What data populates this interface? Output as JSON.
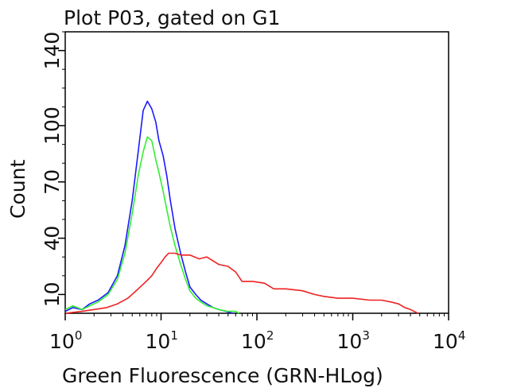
{
  "chart_data": {
    "type": "line",
    "title": "Plot P03, gated on G1",
    "xlabel": "Green Fluorescence (GRN-HLog)",
    "ylabel": "Count",
    "x_scale": "log",
    "xlim": [
      1,
      10000
    ],
    "ylim": [
      0,
      150
    ],
    "x_ticks": [
      {
        "value": 1,
        "base": "10",
        "exp": "0"
      },
      {
        "value": 10,
        "base": "10",
        "exp": "1"
      },
      {
        "value": 100,
        "base": "10",
        "exp": "2"
      },
      {
        "value": 1000,
        "base": "10",
        "exp": "3"
      },
      {
        "value": 10000,
        "base": "10",
        "exp": "4"
      }
    ],
    "y_ticks": [
      {
        "value": 10,
        "label": "10"
      },
      {
        "value": 40,
        "label": "40"
      },
      {
        "value": 70,
        "label": "70"
      },
      {
        "value": 100,
        "label": "100"
      },
      {
        "value": 140,
        "label": "140"
      }
    ],
    "grid": false,
    "legend": "none",
    "series": [
      {
        "color": "#1a1aff",
        "x": [
          1.0,
          1.2,
          1.5,
          1.8,
          2.2,
          2.8,
          3.5,
          4.2,
          5.0,
          5.8,
          6.5,
          7.2,
          8.0,
          8.8,
          9.5,
          10.5,
          11.5,
          12.5,
          14,
          16,
          18,
          20,
          23,
          26,
          30,
          35,
          40,
          48,
          56
        ],
        "y": [
          1,
          3,
          2,
          5,
          7,
          11,
          20,
          36,
          60,
          87,
          108,
          113,
          109,
          102,
          92,
          84,
          73,
          60,
          45,
          32,
          22,
          14,
          10,
          7,
          5,
          3,
          2,
          1,
          0
        ]
      },
      {
        "color": "#33ee33",
        "x": [
          1.0,
          1.2,
          1.5,
          1.8,
          2.2,
          2.8,
          3.5,
          4.2,
          5.0,
          5.8,
          6.5,
          7.2,
          8.0,
          8.8,
          9.5,
          10.5,
          11.5,
          12.5,
          14,
          16,
          18,
          20,
          23,
          26,
          30,
          35,
          40,
          50,
          60,
          65
        ],
        "y": [
          2,
          4,
          2,
          4,
          6,
          10,
          18,
          32,
          53,
          74,
          86,
          94,
          92,
          82,
          75,
          65,
          55,
          46,
          36,
          26,
          18,
          12,
          8,
          6,
          4,
          3,
          2,
          1,
          1,
          0
        ]
      },
      {
        "color": "#ee2222",
        "x": [
          1.0,
          1.5,
          2.0,
          2.7,
          3.5,
          4.5,
          5.5,
          7,
          8,
          9,
          10,
          11,
          12,
          14,
          16,
          20,
          25,
          30,
          40,
          50,
          60,
          70,
          90,
          120,
          150,
          200,
          300,
          400,
          500,
          700,
          1000,
          1500,
          2000,
          2500,
          3000,
          3500,
          4000,
          4800
        ],
        "y": [
          0,
          1,
          2,
          3,
          5,
          8,
          12,
          17,
          20,
          24,
          27,
          30,
          32,
          32,
          31,
          31,
          29,
          30,
          26,
          25,
          22,
          17,
          17,
          16,
          13,
          13,
          12,
          10,
          9,
          8,
          8,
          7,
          7,
          6,
          5,
          3,
          2,
          0
        ]
      }
    ]
  }
}
